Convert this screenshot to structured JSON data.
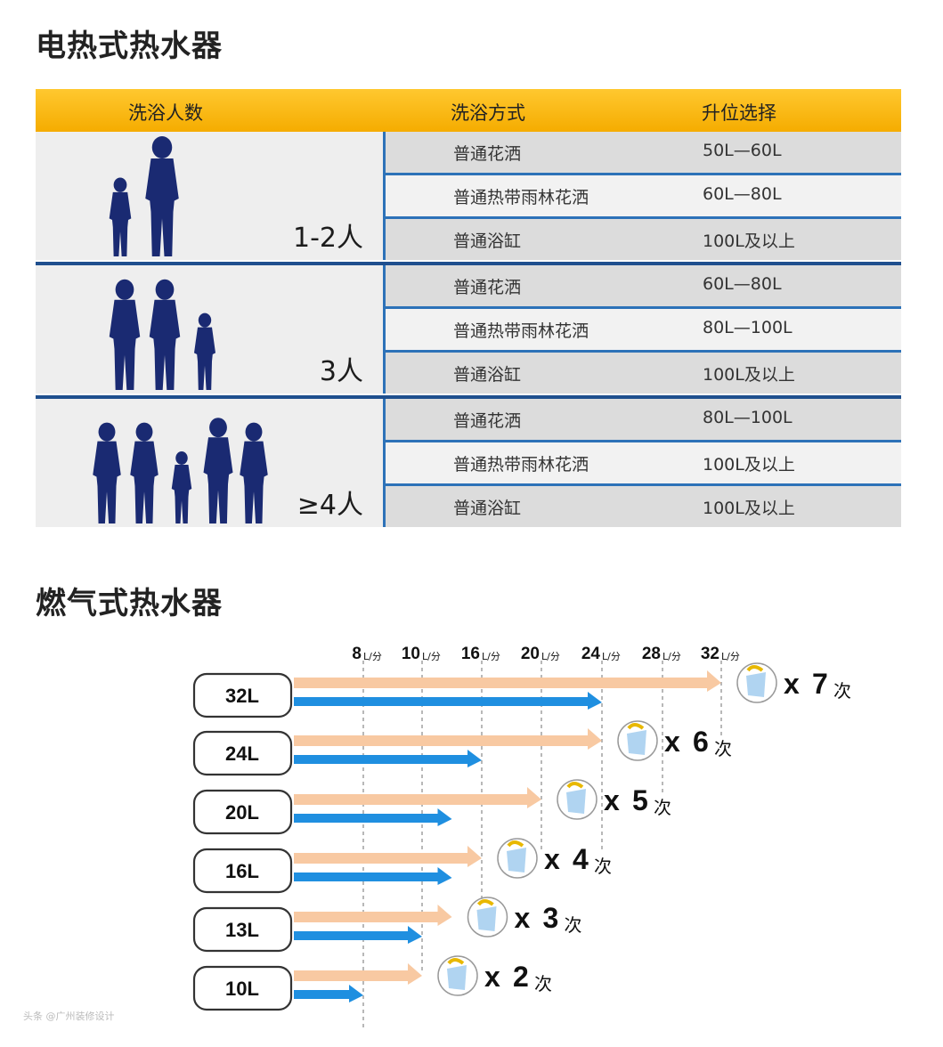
{
  "section1": {
    "title": "电热式热水器"
  },
  "table": {
    "headers": {
      "people": "洗浴人数",
      "method": "洗浴方式",
      "capacity": "升位选择"
    },
    "groups": [
      {
        "people": "1-2人",
        "figures": 2,
        "rows": [
          {
            "method": "普通花洒",
            "capacity": "50L—60L"
          },
          {
            "method": "普通热带雨林花洒",
            "capacity": "60L—80L"
          },
          {
            "method": "普通浴缸",
            "capacity": "100L及以上"
          }
        ]
      },
      {
        "people": "3人",
        "figures": 3,
        "rows": [
          {
            "method": "普通花洒",
            "capacity": "60L—80L"
          },
          {
            "method": "普通热带雨林花洒",
            "capacity": "80L—100L"
          },
          {
            "method": "普通浴缸",
            "capacity": "100L及以上"
          }
        ]
      },
      {
        "people": "≥4人",
        "figures": 5,
        "rows": [
          {
            "method": "普通花洒",
            "capacity": "80L—100L"
          },
          {
            "method": "普通热带雨林花洒",
            "capacity": "100L及以上"
          },
          {
            "method": "普通浴缸",
            "capacity": "100L及以上"
          }
        ]
      }
    ]
  },
  "section2": {
    "title": "燃气式热水器"
  },
  "chart_data": {
    "type": "bar",
    "tick_unit": "L/分",
    "ticks": [
      8,
      10,
      16,
      20,
      24,
      28,
      32
    ],
    "categories": [
      "32L",
      "24L",
      "20L",
      "16L",
      "13L",
      "10L"
    ],
    "series": [
      {
        "color": "#f8c9a2",
        "values": [
          32,
          24,
          20,
          16,
          13,
          10
        ]
      },
      {
        "color": "#1f8fe0",
        "values": [
          24,
          16,
          13,
          13,
          10,
          8
        ]
      }
    ],
    "annotations": [
      {
        "x": "x",
        "count": "7",
        "unit": "次"
      },
      {
        "x": "x",
        "count": "6",
        "unit": "次"
      },
      {
        "x": "x",
        "count": "5",
        "unit": "次"
      },
      {
        "x": "x",
        "count": "4",
        "unit": "次"
      },
      {
        "x": "x",
        "count": "3",
        "unit": "次"
      },
      {
        "x": "x",
        "count": "2",
        "unit": "次"
      }
    ],
    "icon": "shower-icon"
  },
  "watermark": "头条 @广州装修设计"
}
